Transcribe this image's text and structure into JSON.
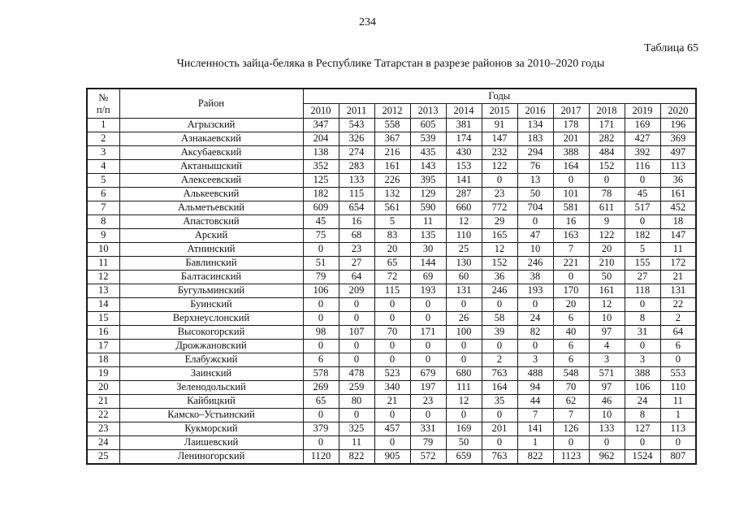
{
  "page": {
    "page_number": "234",
    "table_label": "Таблица 65",
    "title": "Численность зайца-беляка в Республике Татарстан в разрезе районов за 2010–2020 годы"
  },
  "table": {
    "col_headers": {
      "num_line1": "№",
      "num_line2": "п/п",
      "region": "Район",
      "years_group": "Годы"
    },
    "years": [
      "2010",
      "2011",
      "2012",
      "2013",
      "2014",
      "2015",
      "2016",
      "2017",
      "2018",
      "2019",
      "2020"
    ],
    "rows": [
      {
        "num": "1",
        "region": "Агрызский",
        "values": [
          347,
          543,
          558,
          605,
          381,
          91,
          134,
          178,
          171,
          169,
          196
        ]
      },
      {
        "num": "2",
        "region": "Азнакаевский",
        "values": [
          204,
          326,
          367,
          539,
          174,
          147,
          183,
          201,
          282,
          427,
          369
        ]
      },
      {
        "num": "3",
        "region": "Аксубаевский",
        "values": [
          138,
          274,
          216,
          435,
          430,
          232,
          294,
          388,
          484,
          392,
          497
        ]
      },
      {
        "num": "4",
        "region": "Актанышский",
        "values": [
          352,
          283,
          161,
          143,
          153,
          122,
          76,
          164,
          152,
          116,
          113
        ]
      },
      {
        "num": "5",
        "region": "Алексеевский",
        "values": [
          125,
          133,
          226,
          395,
          141,
          0,
          13,
          0,
          0,
          0,
          36
        ]
      },
      {
        "num": "6",
        "region": "Алькеевский",
        "values": [
          182,
          115,
          132,
          129,
          287,
          23,
          50,
          101,
          78,
          45,
          161
        ]
      },
      {
        "num": "7",
        "region": "Альметьевский",
        "values": [
          609,
          654,
          561,
          590,
          660,
          772,
          704,
          581,
          611,
          517,
          452
        ]
      },
      {
        "num": "8",
        "region": "Апастовский",
        "values": [
          45,
          16,
          5,
          11,
          12,
          29,
          0,
          16,
          9,
          0,
          18
        ]
      },
      {
        "num": "9",
        "region": "Арский",
        "values": [
          75,
          68,
          83,
          135,
          110,
          165,
          47,
          163,
          122,
          182,
          147
        ]
      },
      {
        "num": "10",
        "region": "Атнинский",
        "values": [
          0,
          23,
          20,
          30,
          25,
          12,
          10,
          7,
          20,
          5,
          11
        ]
      },
      {
        "num": "11",
        "region": "Бавлинский",
        "values": [
          51,
          27,
          65,
          144,
          130,
          152,
          246,
          221,
          210,
          155,
          172
        ]
      },
      {
        "num": "12",
        "region": "Балтасинский",
        "values": [
          79,
          64,
          72,
          69,
          60,
          36,
          38,
          0,
          50,
          27,
          21
        ]
      },
      {
        "num": "13",
        "region": "Бугульминский",
        "values": [
          106,
          209,
          115,
          193,
          131,
          246,
          193,
          170,
          161,
          118,
          131
        ]
      },
      {
        "num": "14",
        "region": "Буинский",
        "values": [
          0,
          0,
          0,
          0,
          0,
          0,
          0,
          20,
          12,
          0,
          22
        ]
      },
      {
        "num": "15",
        "region": "Верхнеуслонский",
        "values": [
          0,
          0,
          0,
          0,
          26,
          58,
          24,
          6,
          10,
          8,
          2
        ]
      },
      {
        "num": "16",
        "region": "Высокогорский",
        "values": [
          98,
          107,
          70,
          171,
          100,
          39,
          82,
          40,
          97,
          31,
          64
        ]
      },
      {
        "num": "17",
        "region": "Дрожжановский",
        "values": [
          0,
          0,
          0,
          0,
          0,
          0,
          0,
          6,
          4,
          0,
          6
        ]
      },
      {
        "num": "18",
        "region": "Елабужский",
        "values": [
          6,
          0,
          0,
          0,
          0,
          2,
          3,
          6,
          3,
          3,
          0
        ]
      },
      {
        "num": "19",
        "region": "Заинский",
        "values": [
          578,
          478,
          523,
          679,
          680,
          763,
          488,
          548,
          571,
          388,
          553
        ]
      },
      {
        "num": "20",
        "region": "Зеленодольский",
        "values": [
          269,
          259,
          340,
          197,
          111,
          164,
          94,
          70,
          97,
          106,
          110
        ]
      },
      {
        "num": "21",
        "region": "Кайбицкий",
        "values": [
          65,
          80,
          21,
          23,
          12,
          35,
          44,
          62,
          46,
          24,
          11
        ]
      },
      {
        "num": "22",
        "region": "Камско–Устьинский",
        "values": [
          0,
          0,
          0,
          0,
          0,
          0,
          7,
          7,
          10,
          8,
          1
        ]
      },
      {
        "num": "23",
        "region": "Кукморский",
        "values": [
          379,
          325,
          457,
          331,
          169,
          201,
          141,
          126,
          133,
          127,
          113
        ]
      },
      {
        "num": "24",
        "region": "Лаишевский",
        "values": [
          0,
          11,
          0,
          79,
          50,
          0,
          1,
          0,
          0,
          0,
          0
        ]
      },
      {
        "num": "25",
        "region": "Лениногорский",
        "values": [
          1120,
          822,
          905,
          572,
          659,
          763,
          822,
          1123,
          962,
          1524,
          807
        ]
      }
    ]
  }
}
